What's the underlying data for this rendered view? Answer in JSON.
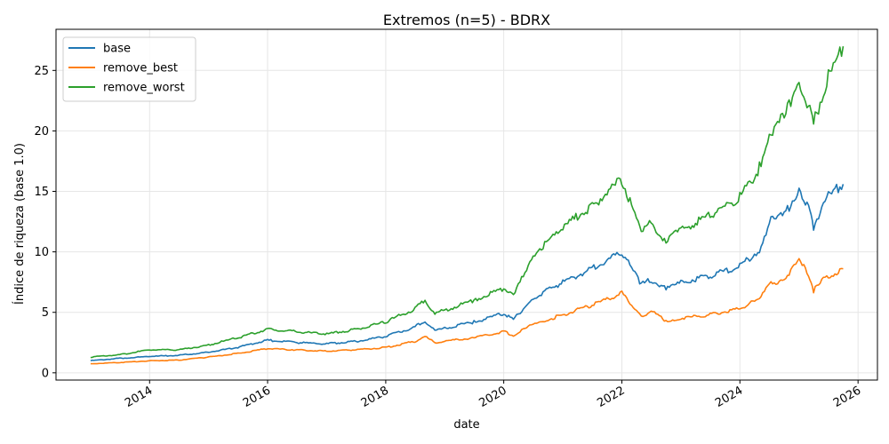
{
  "chart_data": {
    "type": "line",
    "title": "Extremos (n=5) - BDRX",
    "xlabel": "date",
    "ylabel": "Índice de riqueza (base 1.0)",
    "xlim": [
      "2012-06-01",
      "2026-05-01"
    ],
    "ylim": [
      -0.6,
      28.4
    ],
    "x_ticks": [
      "2014",
      "2016",
      "2018",
      "2020",
      "2022",
      "2024",
      "2026"
    ],
    "y_ticks": [
      0,
      5,
      10,
      15,
      20,
      25
    ],
    "grid": true,
    "legend_position": "top-left",
    "series": [
      {
        "name": "base",
        "color": "#1f77b4",
        "points": [
          [
            "2013-01-01",
            1.0
          ],
          [
            "2013-07-01",
            1.2
          ],
          [
            "2014-01-01",
            1.35
          ],
          [
            "2014-07-01",
            1.45
          ],
          [
            "2015-01-01",
            1.7
          ],
          [
            "2015-07-01",
            2.1
          ],
          [
            "2016-01-01",
            2.7
          ],
          [
            "2016-07-01",
            2.5
          ],
          [
            "2017-01-01",
            2.4
          ],
          [
            "2017-07-01",
            2.6
          ],
          [
            "2018-01-01",
            3.0
          ],
          [
            "2018-07-01",
            3.8
          ],
          [
            "2018-09-01",
            4.3
          ],
          [
            "2018-11-01",
            3.5
          ],
          [
            "2019-07-01",
            4.2
          ],
          [
            "2020-01-01",
            4.9
          ],
          [
            "2020-03-01",
            4.4
          ],
          [
            "2020-07-01",
            6.2
          ],
          [
            "2021-01-01",
            7.5
          ],
          [
            "2021-07-01",
            8.6
          ],
          [
            "2022-01-01",
            10.0
          ],
          [
            "2022-05-01",
            7.3
          ],
          [
            "2022-07-01",
            7.7
          ],
          [
            "2022-10-01",
            6.9
          ],
          [
            "2023-01-01",
            7.5
          ],
          [
            "2023-07-01",
            8.0
          ],
          [
            "2024-01-01",
            8.8
          ],
          [
            "2024-05-01",
            10.2
          ],
          [
            "2024-07-01",
            12.5
          ],
          [
            "2024-10-01",
            13.0
          ],
          [
            "2025-01-01",
            15.3
          ],
          [
            "2025-03-01",
            13.5
          ],
          [
            "2025-04-01",
            12.0
          ],
          [
            "2025-06-01",
            14.2
          ],
          [
            "2025-10-01",
            15.6
          ]
        ]
      },
      {
        "name": "remove_best",
        "color": "#ff7f0e",
        "points": [
          [
            "2013-01-01",
            0.75
          ],
          [
            "2013-07-01",
            0.85
          ],
          [
            "2014-01-01",
            1.0
          ],
          [
            "2014-07-01",
            1.05
          ],
          [
            "2015-01-01",
            1.3
          ],
          [
            "2015-07-01",
            1.6
          ],
          [
            "2016-01-01",
            2.0
          ],
          [
            "2016-07-01",
            1.9
          ],
          [
            "2017-01-01",
            1.8
          ],
          [
            "2017-07-01",
            1.9
          ],
          [
            "2018-01-01",
            2.1
          ],
          [
            "2018-07-01",
            2.6
          ],
          [
            "2018-09-01",
            3.0
          ],
          [
            "2018-11-01",
            2.5
          ],
          [
            "2019-07-01",
            2.9
          ],
          [
            "2020-01-01",
            3.4
          ],
          [
            "2020-03-01",
            3.1
          ],
          [
            "2020-07-01",
            4.0
          ],
          [
            "2021-01-01",
            4.8
          ],
          [
            "2021-07-01",
            5.6
          ],
          [
            "2022-01-01",
            6.6
          ],
          [
            "2022-05-01",
            4.7
          ],
          [
            "2022-07-01",
            5.1
          ],
          [
            "2022-10-01",
            4.3
          ],
          [
            "2023-01-01",
            4.5
          ],
          [
            "2023-07-01",
            4.8
          ],
          [
            "2024-01-01",
            5.3
          ],
          [
            "2024-05-01",
            6.1
          ],
          [
            "2024-07-01",
            7.3
          ],
          [
            "2024-10-01",
            7.8
          ],
          [
            "2025-01-01",
            9.2
          ],
          [
            "2025-03-01",
            8.2
          ],
          [
            "2025-04-01",
            6.8
          ],
          [
            "2025-06-01",
            7.7
          ],
          [
            "2025-10-01",
            8.6
          ]
        ]
      },
      {
        "name": "remove_worst",
        "color": "#2ca02c",
        "points": [
          [
            "2013-01-01",
            1.3
          ],
          [
            "2013-07-01",
            1.5
          ],
          [
            "2014-01-01",
            1.9
          ],
          [
            "2014-07-01",
            1.9
          ],
          [
            "2015-01-01",
            2.3
          ],
          [
            "2015-07-01",
            2.9
          ],
          [
            "2016-01-01",
            3.6
          ],
          [
            "2016-07-01",
            3.4
          ],
          [
            "2017-01-01",
            3.2
          ],
          [
            "2017-07-01",
            3.6
          ],
          [
            "2018-01-01",
            4.2
          ],
          [
            "2018-07-01",
            5.3
          ],
          [
            "2018-09-01",
            6.0
          ],
          [
            "2018-11-01",
            4.9
          ],
          [
            "2019-07-01",
            6.0
          ],
          [
            "2020-01-01",
            7.0
          ],
          [
            "2020-03-01",
            6.3
          ],
          [
            "2020-07-01",
            9.8
          ],
          [
            "2021-01-01",
            12.0
          ],
          [
            "2021-07-01",
            13.8
          ],
          [
            "2022-01-01",
            16.0
          ],
          [
            "2022-05-01",
            11.5
          ],
          [
            "2022-07-01",
            12.5
          ],
          [
            "2022-10-01",
            10.8
          ],
          [
            "2023-01-01",
            11.8
          ],
          [
            "2023-07-01",
            13.0
          ],
          [
            "2024-01-01",
            14.5
          ],
          [
            "2024-05-01",
            17.0
          ],
          [
            "2024-07-01",
            20.0
          ],
          [
            "2024-10-01",
            21.0
          ],
          [
            "2025-01-01",
            24.5
          ],
          [
            "2025-03-01",
            22.0
          ],
          [
            "2025-04-01",
            20.5
          ],
          [
            "2025-06-01",
            23.5
          ],
          [
            "2025-10-01",
            27.0
          ]
        ]
      }
    ]
  }
}
